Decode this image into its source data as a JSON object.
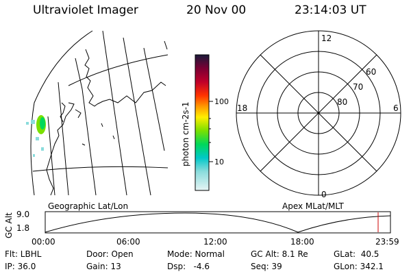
{
  "header": {
    "instrument": "Ultraviolet Imager",
    "date": "20 Nov 00",
    "time": "23:14:03 UT"
  },
  "map_panel": {
    "label": "Geographic Lat/Lon"
  },
  "colorbar": {
    "unit_label": "photon cm-2s-1",
    "ticks": [
      "100",
      "10"
    ],
    "colors": [
      "#1a1a3a",
      "#7a0033",
      "#c0002a",
      "#ff3300",
      "#ff9900",
      "#ffee00",
      "#7ae000",
      "#00d85a",
      "#00c8c8",
      "#8adcdc",
      "#e6f4f4"
    ]
  },
  "polar_panel": {
    "label": "Apex MLat/MLT",
    "mlt_labels": {
      "top": "12",
      "left": "18",
      "right": "6",
      "bottom": "0"
    },
    "lat_labels": [
      "60",
      "70",
      "80"
    ]
  },
  "altitude_plot": {
    "ylabel": "GC Alt",
    "ymax": "9.0",
    "ymin": "1.8",
    "x_ticks": [
      "00:00",
      "06:00",
      "12:00",
      "18:00",
      "23:59"
    ],
    "current_marker_color": "#cc0000"
  },
  "footer": {
    "row1": [
      {
        "key": "flt",
        "text": "Flt: LBHL"
      },
      {
        "key": "door",
        "text": "Door: Open"
      },
      {
        "key": "mode",
        "text": "Mode: Normal"
      },
      {
        "key": "gcalt",
        "text": "GC Alt: 8.1 Re"
      },
      {
        "key": "glat",
        "text": "GLat:  40.5"
      }
    ],
    "row2": [
      {
        "key": "ip",
        "text": "IP: 36.0"
      },
      {
        "key": "gain",
        "text": "Gain: 13"
      },
      {
        "key": "dsp",
        "text": "Dsp:   -4.6"
      },
      {
        "key": "seq",
        "text": "Seq: 39"
      },
      {
        "key": "glon",
        "text": "GLon: 342.1"
      }
    ]
  }
}
